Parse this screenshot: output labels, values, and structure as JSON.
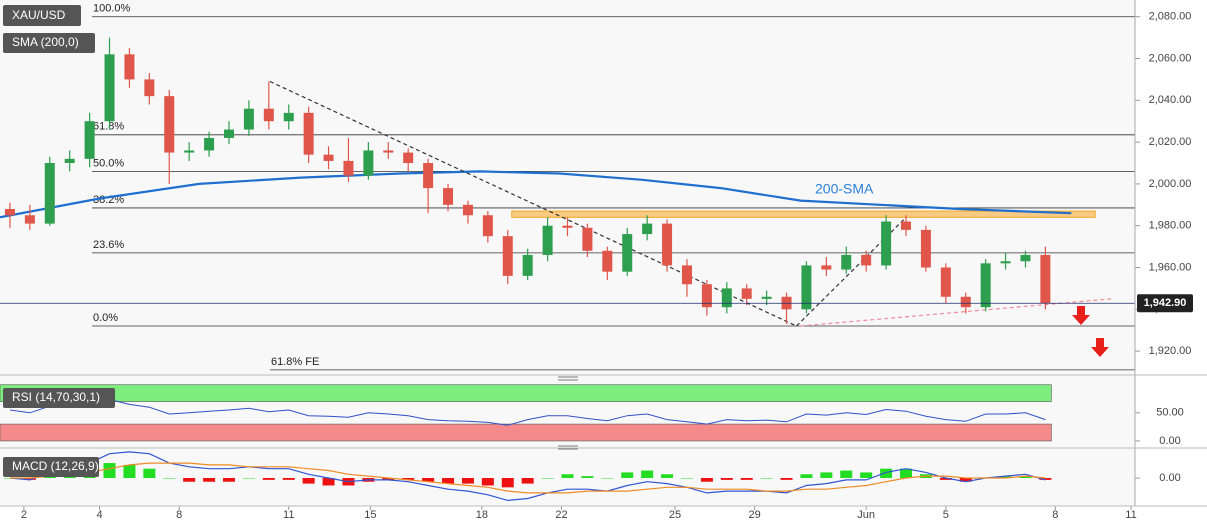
{
  "chart_data": [
    {
      "type": "candlestick",
      "name": "XAU/USD",
      "x": [
        0,
        1,
        2,
        3,
        4,
        5,
        6,
        7,
        8,
        9,
        10,
        11,
        12,
        13,
        14,
        15,
        16,
        17,
        18,
        19,
        20,
        21,
        22,
        23,
        24,
        25,
        26,
        27,
        28,
        29,
        30,
        31,
        32,
        33,
        34,
        35,
        36,
        37,
        38,
        39,
        40,
        41,
        42,
        43,
        44,
        45,
        46,
        47,
        48,
        49,
        50,
        51,
        52
      ],
      "open": [
        1988,
        1985,
        1981,
        2010,
        2012,
        2030,
        2062,
        2050,
        2042,
        2015,
        2016,
        2022,
        2026,
        2036,
        2030,
        2034,
        2014,
        2011,
        2004,
        2016,
        2015,
        2010,
        1998,
        1990,
        1985,
        1975,
        1956,
        1966,
        1980,
        1979,
        1968,
        1958,
        1976,
        1981,
        1961,
        1952,
        1941,
        1950,
        1945,
        1946,
        1940,
        1961,
        1959,
        1966,
        1961,
        1982,
        1978,
        1960,
        1946,
        1941,
        1962,
        1963,
        1966
      ],
      "high": [
        1991,
        1990,
        2013,
        2016,
        2034,
        2070,
        2065,
        2053,
        2045,
        2020,
        2025,
        2030,
        2040,
        2049,
        2038,
        2037,
        2018,
        2022,
        2020,
        2020,
        2017,
        2012,
        2000,
        1992,
        1987,
        1978,
        1969,
        1984,
        1984,
        1981,
        1970,
        1979,
        1985,
        1983,
        1964,
        1954,
        1953,
        1952,
        1949,
        1948,
        1963,
        1965,
        1970,
        1968,
        1985,
        1985,
        1980,
        1962,
        1948,
        1964,
        1967,
        1968,
        1970
      ],
      "low": [
        1979,
        1978,
        1980,
        2006,
        2008,
        2026,
        2046,
        2038,
        2000,
        2011,
        2013,
        2019,
        2023,
        2026,
        2026,
        2010,
        2007,
        2001,
        2002,
        2012,
        2006,
        1986,
        1987,
        1981,
        1972,
        1952,
        1954,
        1963,
        1975,
        1965,
        1954,
        1956,
        1973,
        1958,
        1946,
        1937,
        1938,
        1942,
        1942,
        1933,
        1938,
        1956,
        1957,
        1958,
        1959,
        1975,
        1958,
        1943,
        1938,
        1939,
        1959,
        1960,
        1940
      ],
      "close": [
        1985,
        1981,
        2010,
        2012,
        2030,
        2062,
        2050,
        2042,
        2015,
        2016,
        2022,
        2026,
        2036,
        2030,
        2034,
        2014,
        2011,
        2004,
        2016,
        2015,
        2010,
        1998,
        1990,
        1985,
        1975,
        1956,
        1966,
        1980,
        1979,
        1968,
        1958,
        1976,
        1981,
        1961,
        1952,
        1941,
        1950,
        1945,
        1946,
        1940,
        1961,
        1959,
        1966,
        1961,
        1982,
        1978,
        1960,
        1946,
        1941,
        1962,
        1963,
        1966,
        1942.9
      ],
      "up_color": "#2e9e4f",
      "down_color": "#e0564b",
      "xlim": [
        -0.5,
        56.5
      ],
      "ylim": [
        1910,
        2088
      ],
      "yticks": [
        {
          "value": 1920,
          "label": "1,920.00"
        },
        {
          "value": 1940,
          "label": "1,940.00"
        },
        {
          "value": 1960,
          "label": "1,960.00"
        },
        {
          "value": 1980,
          "label": "1,980.00"
        },
        {
          "value": 2000,
          "label": "2,000.00"
        },
        {
          "value": 2020,
          "label": "2,020.00"
        },
        {
          "value": 2040,
          "label": "2,040.00"
        },
        {
          "value": 2060,
          "label": "2,060.00"
        },
        {
          "value": 2080,
          "label": "2,080.00"
        }
      ],
      "last_price": {
        "value": 1942.9,
        "label": "1,942.90"
      },
      "sma": {
        "name": "SMA (200,0)",
        "label": "200-SMA",
        "color": "#1f6fcf",
        "x": [
          -0.5,
          4.5,
          9.5,
          14.6,
          19.6,
          23.6,
          27.6,
          31.7,
          35.7,
          39.7,
          43.7,
          47.7,
          53.3
        ],
        "values": [
          1984,
          1993,
          2000,
          2003,
          2005,
          2006,
          2005,
          2002,
          1998,
          1992,
          1990,
          1988,
          1986
        ]
      },
      "fib": [
        {
          "label": "100.0%",
          "value": 2080
        },
        {
          "label": "61.8%",
          "value": 2023.5
        },
        {
          "label": "50.0%",
          "value": 2006
        },
        {
          "label": "38.2%",
          "value": 1988.5
        },
        {
          "label": "23.6%",
          "value": 1967
        },
        {
          "label": "0.0%",
          "value": 1932
        },
        {
          "label": "61.8% FE",
          "value": 1911
        }
      ],
      "trendlines": [
        {
          "x": [
            13.06,
            39.5
          ],
          "y": [
            2049,
            1932
          ],
          "color": "#333333"
        },
        {
          "x": [
            39.5,
            45.0
          ],
          "y": [
            1932,
            1984
          ],
          "color": "#333333"
        },
        {
          "x": [
            39.7,
            55.3
          ],
          "y": [
            1932,
            1945
          ],
          "color": "#f08a9a"
        }
      ],
      "zone": {
        "x": [
          25.2,
          54.5
        ],
        "y": [
          1984,
          1987
        ],
        "color": "#f5a623"
      }
    },
    {
      "type": "line",
      "name": "RSI (14,70,30,1)",
      "color": "#3050c8",
      "values": [
        55,
        50,
        62,
        62,
        68,
        74,
        65,
        60,
        48,
        50,
        53,
        55,
        58,
        52,
        55,
        45,
        44,
        42,
        50,
        48,
        45,
        38,
        36,
        35,
        33,
        28,
        38,
        45,
        45,
        40,
        36,
        45,
        48,
        38,
        34,
        30,
        38,
        36,
        37,
        34,
        48,
        46,
        50,
        47,
        56,
        53,
        44,
        38,
        35,
        48,
        48,
        50,
        38
      ],
      "bands": [
        {
          "range": [
            70,
            100
          ],
          "color": "#7dee7d"
        },
        {
          "range": [
            0,
            30
          ],
          "color": "#f58a8a"
        }
      ],
      "ylim": [
        -9,
        112
      ],
      "yticks": [
        {
          "value": 50,
          "label": "50.00"
        },
        {
          "value": 0,
          "label": "0.00"
        }
      ]
    },
    {
      "type": "macd",
      "name": "MACD (12,26,9)",
      "macd": {
        "color": "#2f55d4",
        "values": [
          0,
          -1,
          3,
          5,
          8,
          13,
          14,
          13,
          8,
          6,
          5,
          5,
          6,
          5,
          5,
          2,
          0,
          -2,
          -1,
          -1,
          -2,
          -4,
          -6,
          -7,
          -9,
          -12,
          -11,
          -8,
          -6,
          -6,
          -7,
          -4,
          -2,
          -3,
          -5,
          -8,
          -7,
          -7,
          -7,
          -8,
          -4,
          -3,
          -1,
          -1,
          3,
          5,
          3,
          0,
          -2,
          0,
          1,
          2,
          -1
        ]
      },
      "signal": {
        "color": "#f08a24",
        "values": [
          0,
          0,
          1,
          2,
          3,
          5,
          7,
          8,
          8,
          8,
          7,
          7,
          6,
          6,
          6,
          5,
          4,
          2,
          1,
          0,
          -1,
          -2,
          -3,
          -4,
          -5,
          -7,
          -8,
          -8,
          -8,
          -7,
          -7,
          -7,
          -6,
          -5,
          -5,
          -6,
          -6,
          -6,
          -7,
          -7,
          -6,
          -6,
          -5,
          -4,
          -2,
          0,
          1,
          1,
          0,
          0,
          0,
          1,
          0
        ]
      },
      "histogram": {
        "pos_color": "#22dd22",
        "neg_color": "#ee1111",
        "values": [
          0,
          -1,
          2,
          3,
          5,
          8,
          7,
          5,
          0,
          -2,
          -2,
          -2,
          0,
          -1,
          -1,
          -3,
          -4,
          -4,
          -2,
          -1,
          -1,
          -2,
          -3,
          -3,
          -4,
          -5,
          -3,
          0,
          2,
          1,
          0,
          3,
          4,
          2,
          0,
          -2,
          -1,
          -1,
          0,
          -1,
          2,
          3,
          4,
          3,
          5,
          5,
          2,
          -1,
          -2,
          0,
          1,
          1,
          -1
        ]
      },
      "ylim": [
        -15,
        15
      ],
      "yticks": [
        {
          "value": 0,
          "label": "0.00"
        }
      ],
      "xticks": [
        {
          "value": 0.7,
          "label": "2"
        },
        {
          "value": 4.5,
          "label": "4"
        },
        {
          "value": 8.5,
          "label": "8"
        },
        {
          "value": 14.0,
          "label": "11"
        },
        {
          "value": 18.1,
          "label": "15"
        },
        {
          "value": 23.7,
          "label": "18"
        },
        {
          "value": 27.7,
          "label": "22"
        },
        {
          "value": 33.4,
          "label": "25"
        },
        {
          "value": 37.4,
          "label": "29"
        },
        {
          "value": 43.0,
          "label": "Jun"
        },
        {
          "value": 47.0,
          "label": "5"
        },
        {
          "value": 52.5,
          "label": "8"
        },
        {
          "value": 56.3,
          "label": "11"
        }
      ]
    }
  ]
}
